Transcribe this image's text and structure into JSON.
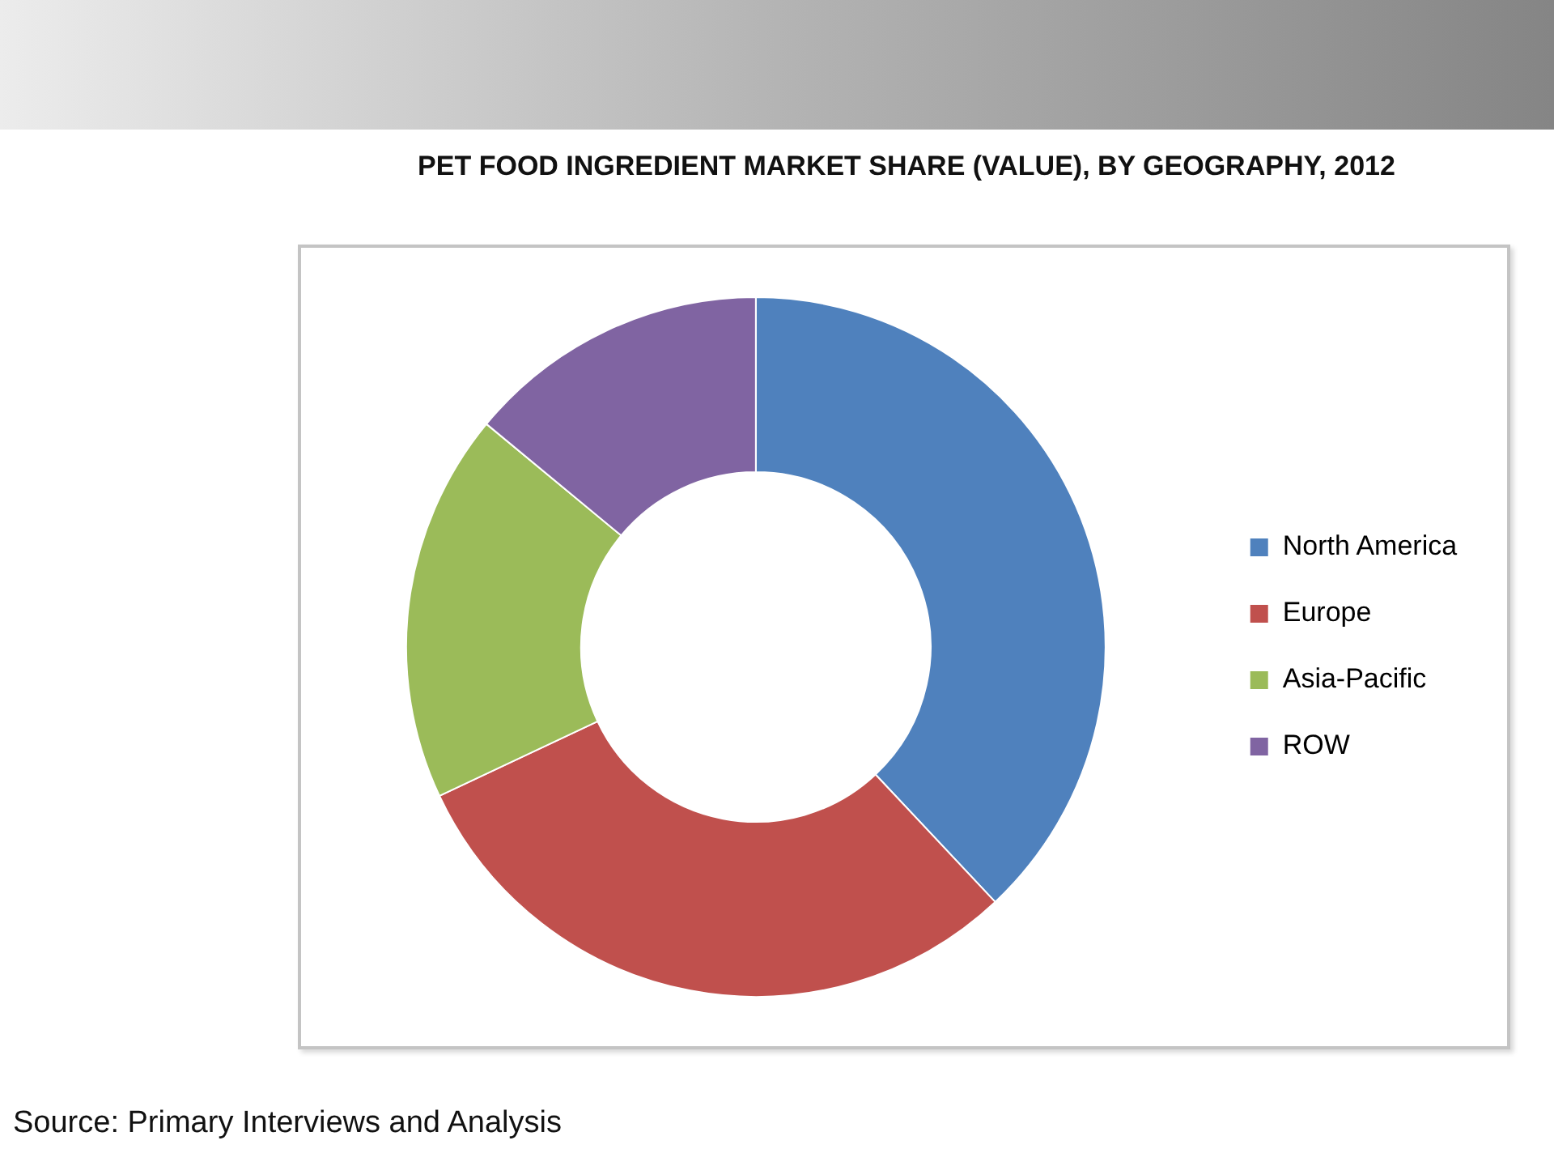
{
  "chart_data": {
    "type": "donut",
    "title": "PET FOOD INGREDIENT MARKET SHARE (VALUE), BY GEOGRAPHY, 2012",
    "categories": [
      "North America",
      "Europe",
      "Asia-Pacific",
      "ROW"
    ],
    "values": [
      38,
      30,
      18,
      14
    ],
    "colors": [
      "#4f81bd",
      "#c0504d",
      "#9bbb59",
      "#8064a2"
    ],
    "legend": "right",
    "annotations": [
      "Source: Primary Interviews and Analysis"
    ]
  }
}
